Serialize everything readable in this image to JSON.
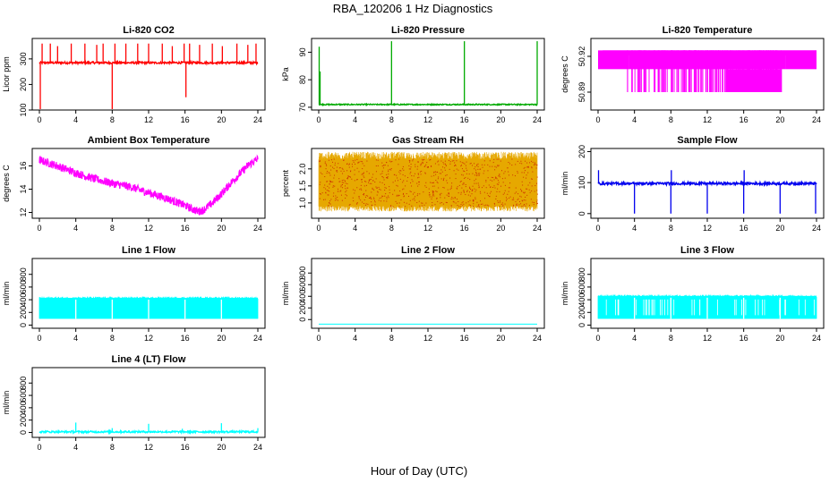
{
  "figure": {
    "title": "RBA_120206  1 Hz Diagnostics",
    "xlabel": "Hour of Day (UTC)"
  },
  "chart_data": [
    {
      "id": "co2",
      "type": "line",
      "title": "Li-820 CO2",
      "ylabel": "Licor ppm",
      "color": "#ff0000",
      "xlim": [
        0,
        24
      ],
      "ylim": [
        100,
        380
      ],
      "yticks": [
        100,
        200,
        300
      ],
      "yticklabels": [
        "100",
        "200",
        "300"
      ],
      "xticks": [
        0,
        4,
        8,
        12,
        16,
        20,
        24
      ],
      "series": {
        "pattern": "band",
        "base": 285,
        "noise": 4,
        "spikes": [
          [
            0.1,
            100
          ],
          [
            0.3,
            360
          ],
          [
            1.2,
            360
          ],
          [
            2.0,
            350
          ],
          [
            3.5,
            360
          ],
          [
            5.0,
            360
          ],
          [
            6.3,
            355
          ],
          [
            7.0,
            360
          ],
          [
            8.0,
            100
          ],
          [
            8.3,
            360
          ],
          [
            9.5,
            360
          ],
          [
            10.8,
            360
          ],
          [
            12.0,
            360
          ],
          [
            13.5,
            360
          ],
          [
            14.6,
            350
          ],
          [
            15.9,
            360
          ],
          [
            16.1,
            150
          ],
          [
            16.5,
            360
          ],
          [
            17.6,
            355
          ],
          [
            19.0,
            360
          ],
          [
            20.1,
            350
          ],
          [
            21.7,
            360
          ],
          [
            22.9,
            355
          ],
          [
            23.8,
            360
          ]
        ]
      }
    },
    {
      "id": "pressure",
      "type": "line",
      "title": "Li-820 Pressure",
      "ylabel": "kPa",
      "color": "#00aa00",
      "xlim": [
        0,
        24
      ],
      "ylim": [
        69,
        95
      ],
      "yticks": [
        70,
        80,
        90
      ],
      "yticklabels": [
        "70",
        "80",
        "90"
      ],
      "xticks": [
        0,
        4,
        8,
        12,
        16,
        20,
        24
      ],
      "series": {
        "pattern": "band",
        "base": 71,
        "noise": 0.2,
        "spikes": [
          [
            0.05,
            92
          ],
          [
            0.15,
            83
          ],
          [
            8.0,
            94
          ],
          [
            16.0,
            94
          ],
          [
            24.0,
            94
          ]
        ]
      }
    },
    {
      "id": "temperature",
      "type": "line",
      "title": "Li-820 Temperature",
      "ylabel": "degrees C",
      "color": "#ff00ff",
      "xlim": [
        0,
        24
      ],
      "ylim": [
        50.875,
        50.935
      ],
      "yticks": [
        50.89,
        50.92
      ],
      "yticklabels": [
        "50.89",
        "50.92"
      ],
      "xticks": [
        0,
        4,
        8,
        12,
        16,
        20,
        24
      ],
      "series": {
        "pattern": "binary",
        "high": 50.925,
        "low": 50.89
      }
    },
    {
      "id": "ambient",
      "type": "line",
      "title": "Ambient Box Temperature",
      "ylabel": "degrees C",
      "color": "#ff00ff",
      "xlim": [
        0,
        24
      ],
      "ylim": [
        11.5,
        17.5
      ],
      "yticks": [
        12,
        14,
        16
      ],
      "yticklabels": [
        "12",
        "14",
        "16"
      ],
      "xticks": [
        0,
        4,
        8,
        12,
        16,
        20,
        24
      ],
      "series": {
        "pattern": "curve",
        "noise": 0.7,
        "x": [
          0,
          2,
          4,
          6,
          8,
          10,
          12,
          14,
          16,
          17,
          17.5,
          18,
          19,
          20,
          21,
          22,
          23,
          24
        ],
        "y": [
          16.5,
          16.0,
          15.4,
          14.9,
          14.5,
          14.2,
          13.7,
          13.2,
          12.6,
          12.2,
          12.1,
          12.2,
          12.8,
          13.6,
          14.5,
          15.3,
          16.1,
          16.6
        ]
      }
    },
    {
      "id": "rh",
      "type": "line",
      "title": "Gas Stream RH",
      "ylabel": "percent",
      "color": "#e6a800",
      "xlim": [
        0,
        24
      ],
      "ylim": [
        0.55,
        2.6
      ],
      "yticks": [
        1.0,
        1.5,
        2.0
      ],
      "yticklabels": [
        "1.0",
        "1.5",
        "2.0"
      ],
      "xticks": [
        0,
        4,
        8,
        12,
        16,
        20,
        24
      ],
      "series": {
        "pattern": "envelope",
        "lo": 0.9,
        "hi": 2.3
      }
    },
    {
      "id": "sample",
      "type": "line",
      "title": "Sample Flow",
      "ylabel": "ml/min",
      "color": "#0000ee",
      "xlim": [
        0,
        24
      ],
      "ylim": [
        -15,
        210
      ],
      "yticks": [
        0,
        100,
        200
      ],
      "yticklabels": [
        "0",
        "100",
        "200"
      ],
      "xticks": [
        0,
        4,
        8,
        12,
        16,
        20,
        24
      ],
      "series": {
        "pattern": "band",
        "base": 97,
        "noise": 4,
        "spikes": [
          [
            0.05,
            140
          ],
          [
            4.0,
            0
          ],
          [
            8.0,
            0
          ],
          [
            8.05,
            140
          ],
          [
            12.0,
            0
          ],
          [
            16.0,
            0
          ],
          [
            16.05,
            140
          ],
          [
            20.0,
            0
          ],
          [
            23.9,
            0
          ]
        ]
      }
    },
    {
      "id": "line1",
      "type": "line",
      "title": "Line 1 Flow",
      "ylabel": "ml/min",
      "color": "#00ffff",
      "xlim": [
        0,
        24
      ],
      "ylim": [
        -50,
        1050
      ],
      "yticks": [
        0,
        200,
        400,
        600,
        800
      ],
      "yticklabels": [
        "0",
        "200",
        "400",
        "600",
        "800"
      ],
      "xticks": [
        0,
        4,
        8,
        12,
        16,
        20,
        24
      ],
      "series": {
        "pattern": "blocks",
        "lo": 100,
        "hi": 430,
        "gaps": [
          4,
          8,
          12,
          16,
          20
        ]
      }
    },
    {
      "id": "line2",
      "type": "line",
      "title": "Line 2 Flow",
      "ylabel": "ml/min",
      "color": "#00ffff",
      "xlim": [
        0,
        24
      ],
      "ylim": [
        -150,
        1050
      ],
      "yticks": [
        0,
        200,
        400,
        600,
        800
      ],
      "yticklabels": [
        "0",
        "200",
        "400",
        "600",
        "800"
      ],
      "xticks": [
        0,
        4,
        8,
        12,
        16,
        20,
        24
      ],
      "series": {
        "pattern": "flat",
        "base": -80
      }
    },
    {
      "id": "line3",
      "type": "line",
      "title": "Line 3 Flow",
      "ylabel": "ml/min",
      "color": "#00ffff",
      "xlim": [
        0,
        24
      ],
      "ylim": [
        -50,
        1050
      ],
      "yticks": [
        0,
        200,
        400,
        600,
        800
      ],
      "yticklabels": [
        "0",
        "200",
        "400",
        "600",
        "800"
      ],
      "xticks": [
        0,
        4,
        8,
        12,
        16,
        20,
        24
      ],
      "series": {
        "pattern": "blocks",
        "lo": 100,
        "hi": 460,
        "gaps": [
          4,
          8,
          12,
          16,
          20
        ],
        "dropouts": 40
      }
    },
    {
      "id": "line4",
      "type": "line",
      "title": "Line 4 (LT) Flow",
      "ylabel": "ml/min",
      "color": "#00ffff",
      "xlim": [
        0,
        24
      ],
      "ylim": [
        -80,
        1050
      ],
      "yticks": [
        0,
        200,
        400,
        600,
        800
      ],
      "yticklabels": [
        "0",
        "200",
        "400",
        "600",
        "800"
      ],
      "xticks": [
        0,
        4,
        8,
        12,
        16,
        20,
        24
      ],
      "series": {
        "pattern": "band",
        "base": 10,
        "noise": 15,
        "spikes": [
          [
            4.0,
            160
          ],
          [
            8.0,
            70
          ],
          [
            12.0,
            140
          ],
          [
            15.7,
            60
          ],
          [
            20.0,
            150
          ],
          [
            24.0,
            70
          ]
        ]
      }
    }
  ]
}
